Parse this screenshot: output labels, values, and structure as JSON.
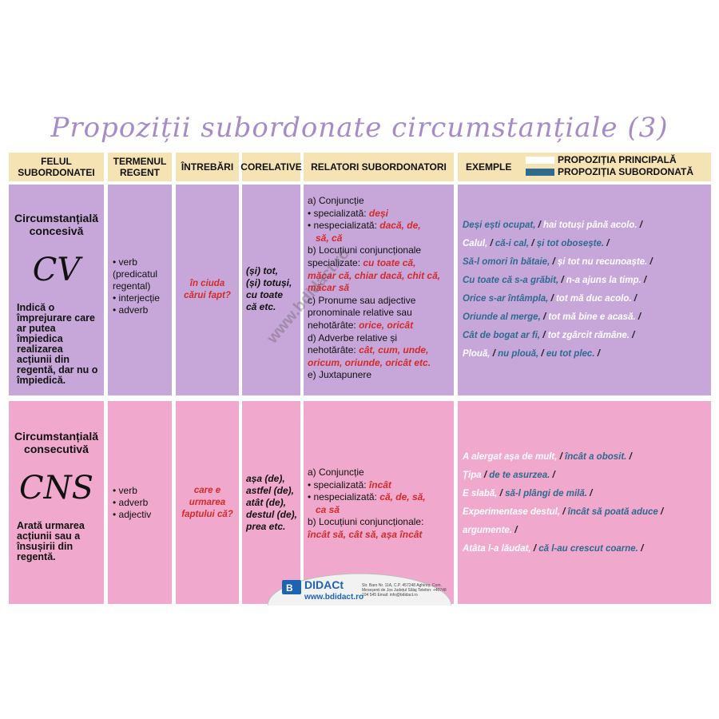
{
  "title": "Propoziții subordonate circumstanțiale (3)",
  "headers": {
    "felul": [
      "FELUL",
      "SUBORDONATEI"
    ],
    "termenul": [
      "TERMENUL",
      "REGENT"
    ],
    "intrebari": "ÎNTREBĂRI",
    "corelative": "CORELATIVE",
    "relatori": "RELATORI SUBORDONATORI",
    "exemple": "EXEMPLE",
    "legend_principala": "PROPOZIȚIA PRINCIPALĂ",
    "legend_subordonata": "PROPOZIȚIA SUBORDONATĂ"
  },
  "colors": {
    "principala": "#ffffff",
    "subordonata": "#2f6a8f",
    "row1": "#c7a7d9",
    "row2": "#f0a9cc",
    "header": "#f6e3b4"
  },
  "row1": {
    "name": [
      "Circumstanțială",
      "concesivă"
    ],
    "abbr": "CV",
    "desc": "Indică o împrejurare care ar putea împiedica realizarea acțiunii din regentă, dar nu o împiedică.",
    "termen": [
      "verb",
      "(predicatul",
      "regental)",
      "interjecție",
      "adverb"
    ],
    "intrebari": [
      "în ciuda",
      "cărui fapt?"
    ],
    "corelative": [
      "(și) tot,",
      "(și) totuși,",
      "cu toate",
      "că etc."
    ],
    "relatori": {
      "l1": "a) Conjuncție",
      "l2": "specializată: ",
      "l2r": "deși",
      "l3": "nespecializată: ",
      "l3r": "dacă, de,",
      "l4r": "să, că",
      "l5": "b) Locuțiuni conjuncționale",
      "l6": "specializate: ",
      "l6r": "cu toate că,",
      "l7r": "măcar că, chiar dacă, chit că,",
      "l8r": "măcar să",
      "l9": "c) Pronume sau adjective",
      "l10": "pronominale relative sau",
      "l11": "nehotărâte: ",
      "l11r": "orice, oricât",
      "l12": "d) Adverbe relative și",
      "l13": "nehotărâte: ",
      "l13r": "cât, cum, unde,",
      "l14r": "oricum, oriunde, oricât etc.",
      "l15": "e) Juxtapunere"
    },
    "examples": [
      {
        "a": "Deși ești ocupat,",
        "b": "hai totuși până acolo."
      },
      {
        "a": "Calul,",
        "b": "că-i cal,",
        "c": "și tot obosește."
      },
      {
        "a": "Să-l omori în bătaie,",
        "b": "și tot nu recunoaște."
      },
      {
        "a": "Cu toate că s-a grăbit,",
        "b": "n-a ajuns la timp."
      },
      {
        "a": "Orice s-ar întâmpla,",
        "b": "tot mă duc acolo."
      },
      {
        "a": "Oriunde al merge,",
        "b": "tot mă bine e acasă."
      },
      {
        "a": "Cât de bogat ar fi,",
        "b": "tot zgârcit rămâne."
      },
      {
        "a": "Plouă,",
        "b": "nu plouă,",
        "c": "eu tot plec."
      }
    ]
  },
  "row2": {
    "name": [
      "Circumstanțială",
      "consecutivă"
    ],
    "abbr": "CNS",
    "desc": "Arată urmarea acțiunii sau a însușirii din regentă.",
    "termen": [
      "verb",
      "adverb",
      "adjectiv"
    ],
    "intrebari": [
      "care e",
      "urmarea",
      "faptului că?"
    ],
    "corelative": [
      "așa (de),",
      "astfel (de),",
      "atât (de),",
      "destul (de),",
      "prea etc."
    ],
    "relatori": {
      "l1": "a) Conjuncție",
      "l2": "specializată: ",
      "l2r": "încât",
      "l3": "nespecializată: ",
      "l3r": "că, de, să,",
      "l4r": "ca să",
      "l5": "b) Locuțiuni conjuncționale:",
      "l6r": "încât să, cât să, așa încât"
    },
    "examples": [
      {
        "a": "A alergat așa de mult,",
        "b": "încât a obosit."
      },
      {
        "a": "Țipa",
        "b": "de te asurzea."
      },
      {
        "a": "E slabă,",
        "b": "să-l plângi de milă."
      },
      {
        "a": "Experimentase destul,",
        "b": "încât să poată aduce"
      },
      {
        "a": "argumente."
      },
      {
        "a": "Atâta l-a lăudat,",
        "b": "că l-au crescut coarne."
      }
    ]
  },
  "watermark": "www.bdidact.ro",
  "logo": {
    "brand": "DIDACt",
    "url": "www.bdidact.ro",
    "address": "Str. Baro Nr. 11A, C.P. 457248 Aghireș, Com. Meseșenii de Jos Județul Sălaj Telefon: +40748 104 545 Email: info@bdidact.ro"
  }
}
